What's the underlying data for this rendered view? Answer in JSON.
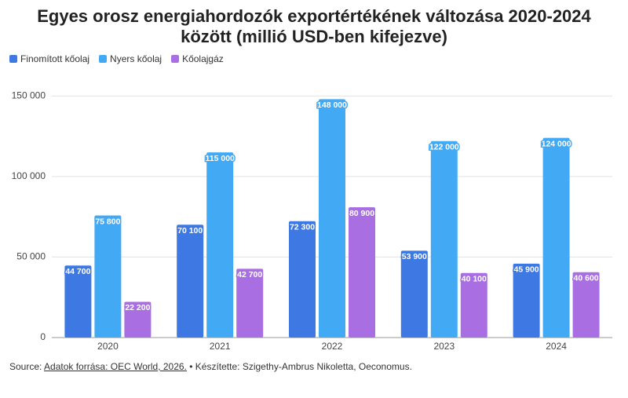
{
  "chart_data": {
    "type": "bar",
    "title": "Egyes orosz energiahordozók exportértékének változása 2020-2024 között (millió USD-ben kifejezve)",
    "categories": [
      "2020",
      "2021",
      "2022",
      "2023",
      "2024"
    ],
    "series": [
      {
        "name": "Finomított kőolaj",
        "color": "#3d78e3",
        "values": [
          44700,
          70100,
          72300,
          53900,
          45900
        ],
        "value_labels": [
          "44 700",
          "70 100",
          "72 300",
          "53 900",
          "45 900"
        ]
      },
      {
        "name": "Nyers kőolaj",
        "color": "#42aaf5",
        "values": [
          75800,
          115000,
          148000,
          122000,
          124000
        ],
        "value_labels": [
          "75 800",
          "115 000",
          "148 000",
          "122 000",
          "124 000"
        ]
      },
      {
        "name": "Kőolajgáz",
        "color": "#a96fe2",
        "values": [
          22200,
          42700,
          80900,
          40100,
          40600
        ],
        "value_labels": [
          "22 200",
          "42 700",
          "80 900",
          "40 100",
          "40 600"
        ]
      }
    ],
    "ylim": [
      0,
      156000
    ],
    "yticks": [
      0,
      {
        "value": 50000,
        "label": "50 000"
      },
      {
        "value": 100000,
        "label": "100 000"
      },
      {
        "value": 150000,
        "label": "150 000"
      }
    ],
    "grid": true,
    "legend": "top-left",
    "source": {
      "label": "Source:",
      "link": "Adatok forrása: OEC World, 2026.",
      "text": "• Készítette: Szigethy-Ambrus Nikoletta, Oeconomus."
    }
  }
}
